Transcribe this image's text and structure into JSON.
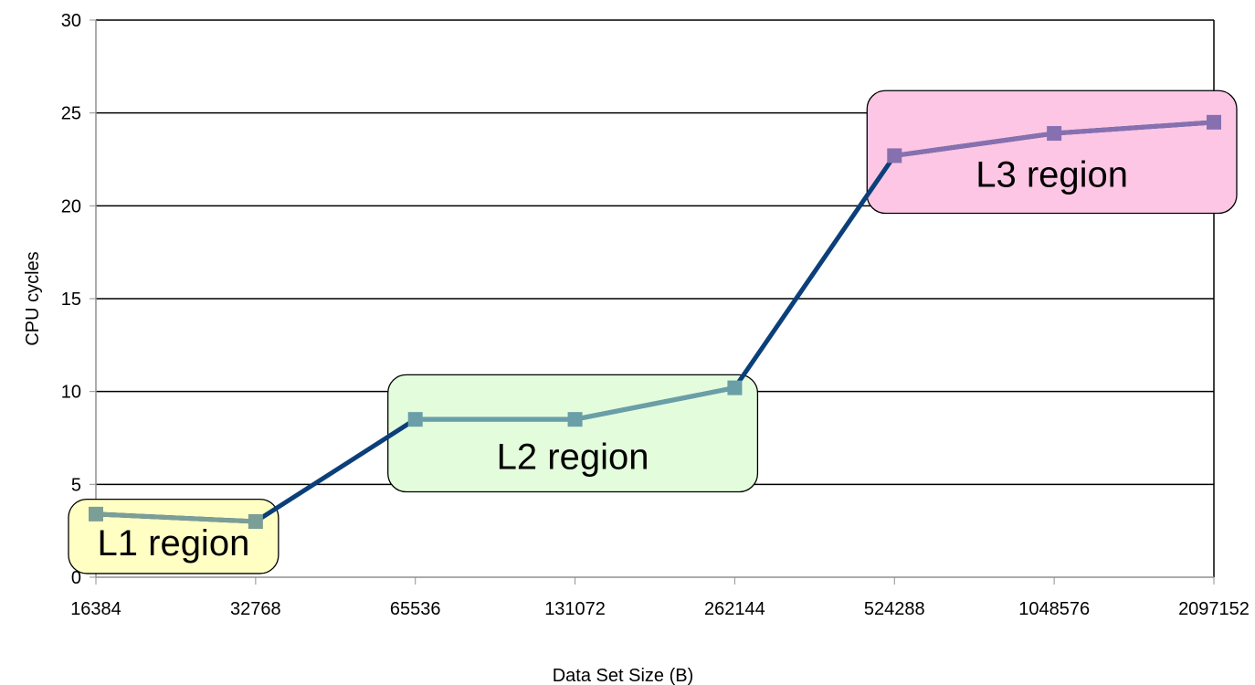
{
  "chart_data": {
    "type": "line",
    "title": "",
    "xlabel": "Data Set Size (B)",
    "ylabel": "CPU cycles",
    "categories": [
      "16384",
      "32768",
      "65536",
      "131072",
      "262144",
      "524288",
      "1048576",
      "2097152"
    ],
    "series": [
      {
        "values": [
          3.4,
          3.0,
          8.5,
          8.5,
          10.2,
          22.7,
          23.9,
          24.5
        ],
        "color": "#0b3f7a"
      }
    ],
    "ylim": [
      0,
      30
    ],
    "yticks": [
      0,
      5,
      10,
      15,
      20,
      25,
      30
    ],
    "grid": "horizontal",
    "legend": "none",
    "colors": {
      "line": "#0b3f7a",
      "l1_marker": "#7b9e97",
      "l2_marker": "#6a9fa8",
      "l3_marker": "#8670b0"
    },
    "annotations": [
      {
        "label": "L1 region",
        "x_range": [
          "16384",
          "32768"
        ],
        "y_range": [
          0.2,
          4.2
        ],
        "fill": "#ffffc4"
      },
      {
        "label": "L2 region",
        "x_range": [
          "65536",
          "262144"
        ],
        "y_range": [
          4.6,
          10.9
        ],
        "fill": "#e3fcdc"
      },
      {
        "label": "L3 region",
        "x_range": [
          "524288",
          "2097152"
        ],
        "y_range": [
          19.6,
          26.2
        ],
        "fill": "#fdc6e4"
      }
    ]
  }
}
